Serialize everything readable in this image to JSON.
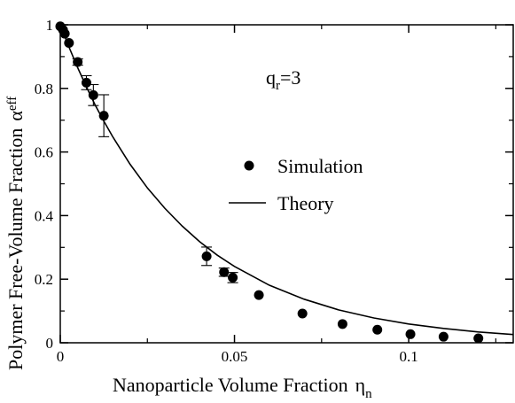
{
  "chart_data": {
    "type": "scatter",
    "xlabel": "Nanoparticle Volume Fraction",
    "xlabel_symbol": "η",
    "xlabel_sub": "n",
    "ylabel": "Polymer Free-Volume Fraction",
    "ylabel_symbol": "α",
    "ylabel_sub": "eff",
    "xlim": [
      0,
      0.13
    ],
    "ylim": [
      0,
      1
    ],
    "xticks": [
      0,
      0.05,
      0.1
    ],
    "xtick_labels": [
      "0",
      "0.05",
      "0.1"
    ],
    "yticks": [
      0,
      0.2,
      0.4,
      0.6,
      0.8,
      1
    ],
    "ytick_labels": [
      "0",
      "0.2",
      "0.4",
      "0.6",
      "0.8",
      "1"
    ],
    "grid": false,
    "legend_position": "center-right",
    "annotation": {
      "text": "q",
      "sub": "r",
      "suffix": "=3"
    },
    "series": [
      {
        "name": "Simulation",
        "kind": "scatter-with-errorbars",
        "points": [
          {
            "x": 0.0,
            "y": 0.995,
            "err": 0.004
          },
          {
            "x": 0.0008,
            "y": 0.984,
            "err": 0.005
          },
          {
            "x": 0.0013,
            "y": 0.972,
            "err": 0.006
          },
          {
            "x": 0.0025,
            "y": 0.943,
            "err": 0.008
          },
          {
            "x": 0.005,
            "y": 0.883,
            "err": 0.01
          },
          {
            "x": 0.0075,
            "y": 0.818,
            "err": 0.022
          },
          {
            "x": 0.0095,
            "y": 0.779,
            "err": 0.033
          },
          {
            "x": 0.0125,
            "y": 0.714,
            "err": 0.066
          },
          {
            "x": 0.042,
            "y": 0.272,
            "err": 0.029
          },
          {
            "x": 0.047,
            "y": 0.222,
            "err": 0.013
          },
          {
            "x": 0.0495,
            "y": 0.205,
            "err": 0.016
          },
          {
            "x": 0.057,
            "y": 0.15,
            "err": 0.007
          },
          {
            "x": 0.0695,
            "y": 0.092,
            "err": 0.005
          },
          {
            "x": 0.081,
            "y": 0.059,
            "err": 0.005
          },
          {
            "x": 0.091,
            "y": 0.041,
            "err": 0.004
          },
          {
            "x": 0.1005,
            "y": 0.027,
            "err": 0.003
          },
          {
            "x": 0.11,
            "y": 0.019,
            "err": 0.003
          },
          {
            "x": 0.12,
            "y": 0.014,
            "err": 0.002
          }
        ]
      },
      {
        "name": "Theory",
        "kind": "line",
        "x": [
          0,
          0.0025,
          0.005,
          0.0075,
          0.01,
          0.0125,
          0.015,
          0.02,
          0.025,
          0.03,
          0.035,
          0.04,
          0.045,
          0.05,
          0.06,
          0.07,
          0.08,
          0.09,
          0.1,
          0.11,
          0.12,
          0.13
        ],
        "y": [
          1.0,
          0.93,
          0.865,
          0.805,
          0.748,
          0.697,
          0.649,
          0.562,
          0.487,
          0.423,
          0.367,
          0.318,
          0.276,
          0.24,
          0.181,
          0.137,
          0.103,
          0.078,
          0.059,
          0.045,
          0.034,
          0.026
        ]
      }
    ]
  }
}
